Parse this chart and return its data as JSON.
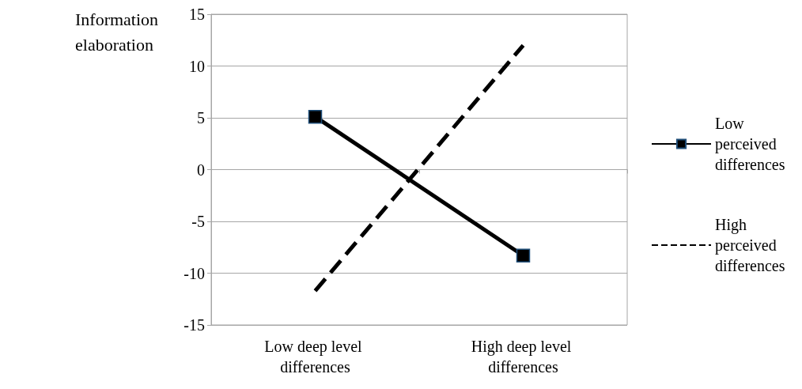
{
  "chart_data": {
    "type": "line",
    "ylabel": "Information elaboration",
    "categories": [
      "Low deep level differences",
      "High deep level differences"
    ],
    "series": [
      {
        "name": "Low perceived differences",
        "color": "#000000",
        "marker": "square",
        "line_style": "solid",
        "values": [
          5.1,
          -8.3
        ]
      },
      {
        "name": "High perceived differences",
        "color": "#000000",
        "marker": "none",
        "line_style": "dashed",
        "values": [
          -11.7,
          12
        ]
      }
    ],
    "ylim": [
      -15,
      15
    ],
    "yticks": [
      -15,
      -10,
      -5,
      0,
      5,
      10,
      15
    ],
    "grid": "y",
    "legend": "right"
  }
}
